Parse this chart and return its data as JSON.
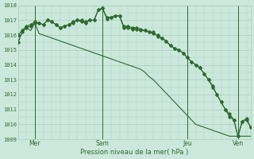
{
  "bg_color": "#cce8dc",
  "grid_color": "#aaccbb",
  "line_color": "#2d6a2d",
  "marker_color": "#2d6a2d",
  "xlabel": "Pression niveau de la mer( hPa )",
  "ylim": [
    1009,
    1018
  ],
  "yticks": [
    1009,
    1010,
    1011,
    1012,
    1013,
    1014,
    1015,
    1016,
    1017,
    1018
  ],
  "xtick_labels": [
    "Mer",
    "Sam",
    "Jeu",
    "Ven"
  ],
  "xtick_positions": [
    4,
    20,
    40,
    52
  ],
  "vline_positions": [
    4,
    20,
    40,
    52
  ],
  "series_a": [
    1015.5,
    1016.2,
    1016.5,
    1016.6,
    1016.8,
    1016.8,
    1016.7,
    1017.0,
    1016.9,
    1016.7,
    1016.5,
    1016.6,
    1016.7,
    1016.8,
    1017.0,
    1016.9,
    1016.8,
    1017.0,
    1017.0,
    1017.7,
    1017.8,
    1017.1,
    1017.2,
    1017.3,
    1017.3,
    1016.5,
    1016.5,
    1016.4,
    1016.4,
    1016.3,
    1016.3,
    1016.2,
    1016.2,
    1015.9,
    1015.8,
    1015.6,
    1015.3,
    1015.1,
    1015.0,
    1014.8,
    1014.5,
    1014.2,
    1014.0,
    1013.8,
    1013.4,
    1013.0,
    1012.5,
    1012.0,
    1011.5,
    1011.0,
    1010.5,
    1010.3,
    1009.2,
    1010.2,
    1010.3,
    1009.8
  ],
  "series_b": [
    1016.0,
    1016.3,
    1016.6,
    1016.7,
    1016.9,
    1016.8,
    1016.7,
    1017.0,
    1016.9,
    1016.7,
    1016.5,
    1016.6,
    1016.7,
    1016.9,
    1017.0,
    1017.0,
    1016.9,
    1017.0,
    1017.0,
    1017.7,
    1017.8,
    1017.2,
    1017.2,
    1017.3,
    1017.3,
    1016.6,
    1016.6,
    1016.5,
    1016.5,
    1016.4,
    1016.3,
    1016.2,
    1016.1,
    1016.0,
    1015.8,
    1015.6,
    1015.3,
    1015.1,
    1015.0,
    1014.8,
    1014.5,
    1014.2,
    1014.0,
    1013.8,
    1013.4,
    1013.0,
    1012.6,
    1012.0,
    1011.5,
    1011.0,
    1010.7,
    1010.3,
    1009.2,
    1010.2,
    1010.4,
    1009.8
  ],
  "series_c": [
    1015.5,
    1016.2,
    1016.5,
    1016.3,
    1016.8,
    1016.1,
    1016.0,
    1015.9,
    1015.8,
    1015.7,
    1015.6,
    1015.5,
    1015.4,
    1015.3,
    1015.2,
    1015.1,
    1015.0,
    1014.9,
    1014.8,
    1014.7,
    1014.6,
    1014.5,
    1014.4,
    1014.3,
    1014.2,
    1014.1,
    1014.0,
    1013.9,
    1013.8,
    1013.7,
    1013.5,
    1013.2,
    1013.0,
    1012.7,
    1012.4,
    1012.1,
    1011.8,
    1011.5,
    1011.2,
    1010.9,
    1010.6,
    1010.3,
    1010.0,
    1009.9,
    1009.8,
    1009.7,
    1009.6,
    1009.5,
    1009.4,
    1009.3,
    1009.2,
    1009.2,
    1009.2,
    1009.2,
    1009.2,
    1009.2
  ]
}
